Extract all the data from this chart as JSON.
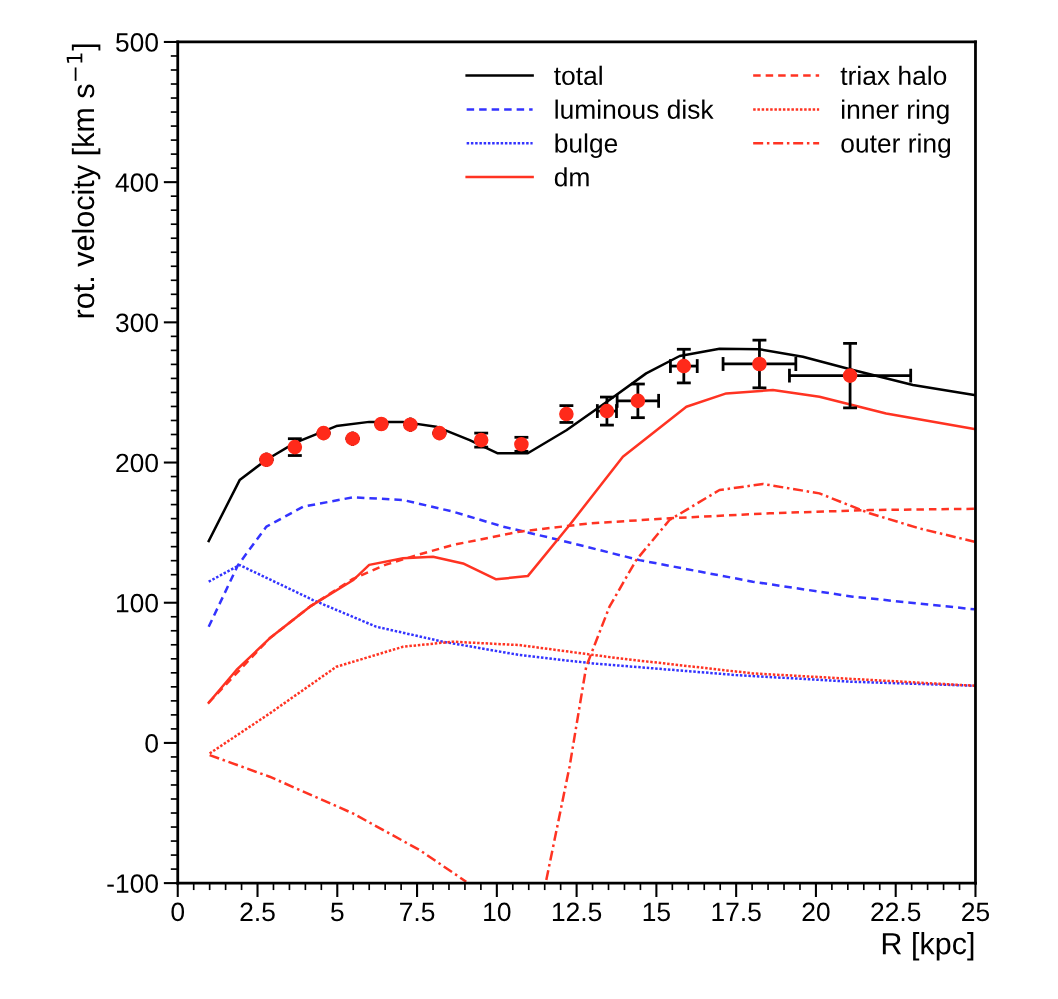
{
  "chart_data": {
    "type": "line",
    "xlabel": "R [kpc]",
    "ylabel": "rot. velocity [km s$^{−1}$]",
    "xlim": [
      0,
      25
    ],
    "xticks": [
      0,
      2.5,
      5,
      7.5,
      10,
      12.5,
      15,
      17.5,
      20,
      22.5,
      25
    ],
    "ylim": [
      -100,
      500
    ],
    "yticks": [
      -100,
      0,
      100,
      200,
      300,
      400,
      500
    ],
    "legend": "top right",
    "grid": false,
    "series": [
      {
        "name": "total",
        "color": "#000000",
        "line_style": "solid",
        "x": [
          0.97,
          1.94,
          2.78,
          3.67,
          4.97,
          6.0,
          7.06,
          8.1,
          9.15,
          10.03,
          10.97,
          12.18,
          13.45,
          14.68,
          15.73,
          16.98,
          18.23,
          19.59,
          21.16,
          23.04,
          24.97
        ],
        "values": [
          144,
          187.5,
          202,
          214,
          226,
          229,
          229,
          225.6,
          216,
          206.6,
          206.6,
          223,
          243.4,
          263.6,
          276,
          281.2,
          280.8,
          275.5,
          266,
          255.3,
          248.2
        ]
      },
      {
        "name": "luminous disk",
        "color": "#3333ff",
        "line_style": "dashed",
        "x": [
          0.97,
          1.89,
          2.78,
          3.93,
          5.49,
          7.06,
          8.62,
          10.19,
          11.97,
          14.47,
          18.02,
          21.16,
          24.97
        ],
        "values": [
          82.9,
          126.9,
          154.3,
          168.5,
          175.2,
          173.3,
          165,
          154.3,
          144.7,
          130.4,
          115,
          104.3,
          95.3
        ]
      },
      {
        "name": "bulge",
        "color": "#3333ff",
        "line_style": "dotted",
        "x": [
          0.97,
          1.94,
          4.24,
          6.22,
          8.31,
          10.71,
          13.01,
          17.5,
          21.16,
          24.97
        ],
        "values": [
          115,
          126.9,
          101.9,
          82.9,
          72.2,
          62.7,
          56.7,
          48.4,
          43.6,
          40.8
        ]
      },
      {
        "name": "dm",
        "color": "#ff3322",
        "line_style": "solid",
        "x": [
          0.97,
          1.84,
          2.88,
          4.14,
          5.49,
          6.0,
          7.06,
          8.0,
          8.94,
          9.98,
          10.97,
          12.28,
          13.95,
          15.94,
          17.19,
          18.65,
          20.11,
          22.2,
          24.97
        ],
        "values": [
          28.7,
          52,
          74.6,
          97.2,
          116,
          127,
          131.7,
          132.8,
          128,
          116.7,
          119,
          155.4,
          204.2,
          239.8,
          249.3,
          251.7,
          246.9,
          235,
          223.9
        ]
      },
      {
        "name": "triax halo",
        "color": "#ff3322",
        "line_style": "dashed",
        "x": [
          0.97,
          2.88,
          4.14,
          5.49,
          6.5,
          7.5,
          8.62,
          10.71,
          12.9,
          15.41,
          18.55,
          21.68,
          24.97
        ],
        "values": [
          28.7,
          74.6,
          97.2,
          117,
          127,
          134,
          141.2,
          150.7,
          156.6,
          160.2,
          163.8,
          166.1,
          167
        ]
      },
      {
        "name": "inner ring",
        "color": "#ff3322",
        "line_style": "dotted",
        "x": [
          1.0,
          2.88,
          4.97,
          7.06,
          8.62,
          10.71,
          13.84,
          18.02,
          24.97
        ],
        "values": [
          -7.5,
          21,
          54.3,
          68.6,
          72.2,
          69.8,
          60.3,
          49.6,
          40.8
        ]
      },
      {
        "name": "outer ring",
        "color": "#ff3322",
        "line_style": "dashdot",
        "x": [
          1.0,
          2.88,
          5.49,
          7.58,
          9.04,
          10.3,
          11.55,
          12.28,
          12.8,
          13.53,
          14.37,
          15.41,
          16.98,
          18.34,
          20.11,
          21.68,
          23.25,
          24.97
        ],
        "values": [
          -8.7,
          -24.1,
          -50.3,
          -76.4,
          -99,
          null,
          -97.8,
          -16.8,
          54.3,
          97.2,
          130.5,
          159,
          180.4,
          184.7,
          178,
          163.8,
          153,
          143.5
        ]
      },
      {
        "type": "scatter",
        "color": "#ff2a1a",
        "marker": "circle",
        "x": [
          2.78,
          3.67,
          4.57,
          5.48,
          6.38,
          7.29,
          8.2,
          9.51,
          10.77,
          12.18,
          13.45,
          14.42,
          15.86,
          18.23,
          21.07
        ],
        "values": [
          202,
          211,
          221,
          217,
          227.5,
          227,
          221,
          216,
          213,
          234.6,
          236.7,
          244,
          268.8,
          270.3,
          262
        ],
        "errors": [
          null,
          6,
          null,
          null,
          null,
          null,
          null,
          5,
          5,
          6,
          10,
          12,
          12,
          17,
          23
        ],
        "xerrors": [
          null,
          null,
          null,
          null,
          null,
          null,
          null,
          null,
          null,
          null,
          0.3,
          0.65,
          0.42,
          1.14,
          1.9
        ]
      }
    ]
  }
}
